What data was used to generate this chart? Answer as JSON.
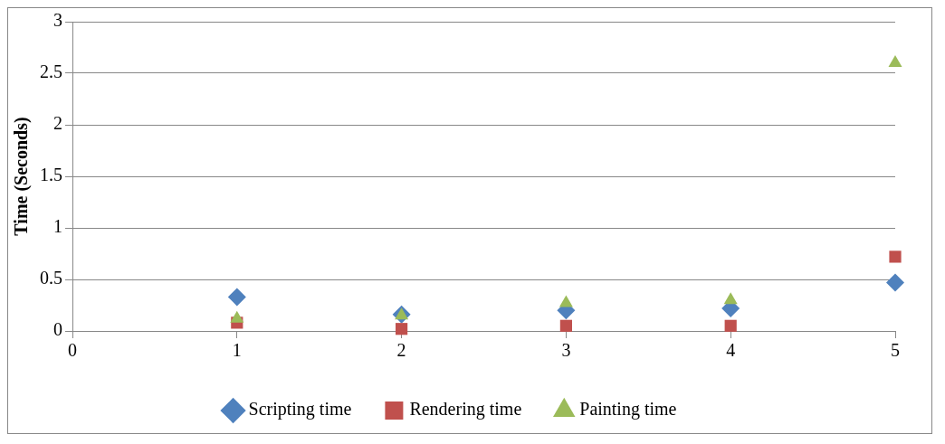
{
  "chart_data": {
    "type": "scatter",
    "ylabel": "Time (Seconds)",
    "x": [
      1,
      2,
      3,
      4,
      5
    ],
    "series": [
      {
        "name": "Scripting time",
        "color": "#4f81bd",
        "marker": "diamond",
        "values": [
          0.33,
          0.16,
          0.2,
          0.22,
          0.47
        ]
      },
      {
        "name": "Rendering time",
        "color": "#c0504d",
        "marker": "square",
        "values": [
          0.08,
          0.02,
          0.05,
          0.05,
          0.72
        ]
      },
      {
        "name": "Painting time",
        "color": "#9bbb59",
        "marker": "triangle",
        "values": [
          0.12,
          0.15,
          0.27,
          0.3,
          2.6
        ]
      }
    ],
    "xlim": [
      0,
      5
    ],
    "xticks": [
      0,
      1,
      2,
      3,
      4,
      5
    ],
    "ylim": [
      0,
      3
    ],
    "yticks": [
      0,
      0.5,
      1,
      1.5,
      2,
      2.5,
      3
    ],
    "grid": "y",
    "legend": "bottom"
  }
}
